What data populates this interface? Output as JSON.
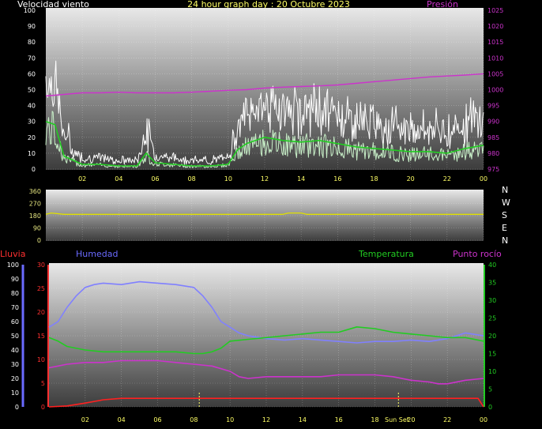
{
  "header": {
    "left": "Velocidad viento",
    "center": "24 hour graph day : 20 Octubre 2023",
    "right": "Presión"
  },
  "colors": {
    "bg": "#000000",
    "panel_top": "#ececec",
    "panel_bottom": "#3a3a3a",
    "wind_gust": "#ffffff",
    "wind_avg": "#c8f0c8",
    "wind_avg_smooth": "#22cc22",
    "pressure": "#cc33cc",
    "direction": "#e0e000",
    "rain": "#ff2020",
    "humidity": "#8080ff",
    "temperature": "#22cc22",
    "dewpoint": "#cc33cc",
    "grid_label": "#ffff66",
    "axis_white": "#ffffff",
    "axis_red": "#ff3030",
    "axis_blue": "#6a6aff",
    "axis_green": "#22cc22",
    "axis_magenta": "#cc33cc",
    "axis_yellow": "#e6e680"
  },
  "compass": [
    "N",
    "W",
    "S",
    "E",
    "N"
  ],
  "bottom_labels": {
    "rain": "Lluvia",
    "humidity": "Humedad",
    "temperature": "Temperatura",
    "dewpoint": "Punto rocío",
    "sunset": "Sun Set"
  },
  "x_ticks": [
    "02",
    "04",
    "06",
    "08",
    "10",
    "12",
    "14",
    "16",
    "18",
    "20",
    "22",
    "00"
  ],
  "chart_data": [
    {
      "type": "line",
      "title": "24 hour graph day : 20 Octubre 2023",
      "x_range_hours": [
        0,
        24
      ],
      "ylim_left": [
        0,
        100
      ],
      "ylim_right": [
        975,
        1025
      ],
      "y_ticks_left": [
        "0",
        "10",
        "20",
        "30",
        "40",
        "50",
        "60",
        "70",
        "80",
        "90",
        "100"
      ],
      "y_ticks_right": [
        "975",
        "980",
        "985",
        "990",
        "995",
        "1000",
        "1005",
        "1010",
        "1015",
        "1020",
        "1025"
      ],
      "series": [
        {
          "name": "Velocidad viento",
          "axis": "left",
          "x": [
            0,
            0.5,
            1,
            2,
            3,
            4,
            5,
            5.5,
            6,
            7,
            8,
            9,
            10,
            10.5,
            11,
            12,
            13,
            14,
            15,
            16,
            17,
            18,
            19,
            20,
            21,
            22,
            23,
            24
          ],
          "y": [
            30,
            28,
            8,
            3,
            3,
            2,
            2,
            10,
            4,
            3,
            2,
            2,
            3,
            12,
            16,
            20,
            18,
            17,
            18,
            16,
            14,
            13,
            12,
            11,
            11,
            10,
            13,
            15
          ]
        },
        {
          "name": "Presión",
          "axis": "right",
          "x": [
            0,
            1,
            2,
            3,
            4,
            5,
            6,
            7,
            8,
            9,
            10,
            11,
            12,
            13,
            14,
            15,
            16,
            17,
            18,
            19,
            20,
            21,
            22,
            23,
            24
          ],
          "y": [
            998,
            998.5,
            999,
            999,
            999.2,
            999,
            999,
            999,
            999.2,
            999.5,
            999.8,
            1000,
            1000.5,
            1000.8,
            1001,
            1001.2,
            1001.5,
            1002,
            1002.5,
            1003,
            1003.5,
            1004,
            1004.3,
            1004.6,
            1005
          ]
        }
      ]
    },
    {
      "type": "line",
      "x_range_hours": [
        0,
        24
      ],
      "ylim": [
        0,
        360
      ],
      "y_ticks": [
        "0",
        "90",
        "180",
        "270",
        "360"
      ],
      "series": [
        {
          "axis": "left",
          "x": [
            0,
            0.3,
            1,
            13,
            13.3,
            14,
            14.3,
            24
          ],
          "y": [
            190,
            200,
            190,
            190,
            200,
            200,
            190,
            190
          ]
        }
      ]
    },
    {
      "type": "line",
      "x_range_hours": [
        0,
        24
      ],
      "ylim_rain": [
        0,
        30
      ],
      "ylim_humidity": [
        0,
        100
      ],
      "ylim_temperature": [
        0,
        40
      ],
      "y_ticks_rain": [
        "0",
        "5",
        "10",
        "15",
        "20",
        "25",
        "30"
      ],
      "y_ticks_humidity": [
        "0",
        "10",
        "20",
        "30",
        "40",
        "50",
        "60",
        "70",
        "80",
        "90",
        "100"
      ],
      "y_ticks_temperature": [
        "0",
        "5",
        "10",
        "15",
        "20",
        "25",
        "30",
        "35",
        "40"
      ],
      "series": [
        {
          "name": "Humedad",
          "axis": "humidity",
          "x": [
            0,
            0.5,
            1,
            1.5,
            2,
            2.5,
            3,
            4,
            5,
            6,
            7,
            8,
            8.5,
            9,
            9.5,
            10,
            10.5,
            11,
            12,
            13,
            14,
            15,
            16,
            17,
            18,
            19,
            20,
            21,
            22,
            23,
            24
          ],
          "y": [
            56,
            60,
            70,
            78,
            84,
            86,
            87,
            86,
            88,
            87,
            86,
            84,
            78,
            70,
            60,
            56,
            52,
            50,
            48,
            47,
            48,
            47,
            46,
            45,
            46,
            46,
            47,
            46,
            48,
            52,
            50
          ]
        },
        {
          "name": "Temperatura",
          "axis": "temperature",
          "x": [
            0,
            0.5,
            1,
            2,
            3,
            4,
            5,
            6,
            7,
            8,
            8.5,
            9,
            9.5,
            10,
            11,
            12,
            13,
            14,
            15,
            16,
            17,
            18,
            19,
            20,
            21,
            22,
            23,
            24
          ],
          "y": [
            19.5,
            18.5,
            17,
            16,
            15.5,
            15.5,
            15.5,
            15.5,
            15.5,
            15,
            15,
            15.5,
            16.5,
            18.5,
            19,
            19.5,
            20,
            20.5,
            21,
            21,
            22.5,
            22,
            21,
            20.5,
            20,
            19.5,
            19.5,
            18.5
          ]
        },
        {
          "name": "Punto rocío",
          "axis": "temperature",
          "x": [
            0,
            0.5,
            1,
            2,
            3,
            4,
            5,
            6,
            7,
            8,
            9,
            10,
            10.5,
            11,
            12,
            13,
            14,
            15,
            16,
            17,
            18,
            19,
            20,
            21,
            21.5,
            22,
            23,
            24
          ],
          "y": [
            11,
            11.5,
            12,
            12.5,
            12.5,
            13,
            13,
            13,
            12.5,
            12,
            11.5,
            10,
            8.5,
            8,
            8.5,
            8.5,
            8.5,
            8.5,
            9,
            9,
            9,
            8.5,
            7.5,
            7,
            6.5,
            6.5,
            7.5,
            8
          ]
        },
        {
          "name": "Lluvia",
          "axis": "rain",
          "x": [
            0,
            1,
            2,
            3,
            4,
            5,
            6,
            8,
            10,
            12,
            14,
            16,
            18,
            20,
            22,
            23.7,
            24
          ],
          "y": [
            0,
            0.2,
            0.8,
            1.5,
            1.8,
            1.8,
            1.8,
            1.8,
            1.8,
            1.8,
            1.8,
            1.8,
            1.8,
            1.8,
            1.8,
            1.8,
            0
          ]
        }
      ]
    }
  ]
}
